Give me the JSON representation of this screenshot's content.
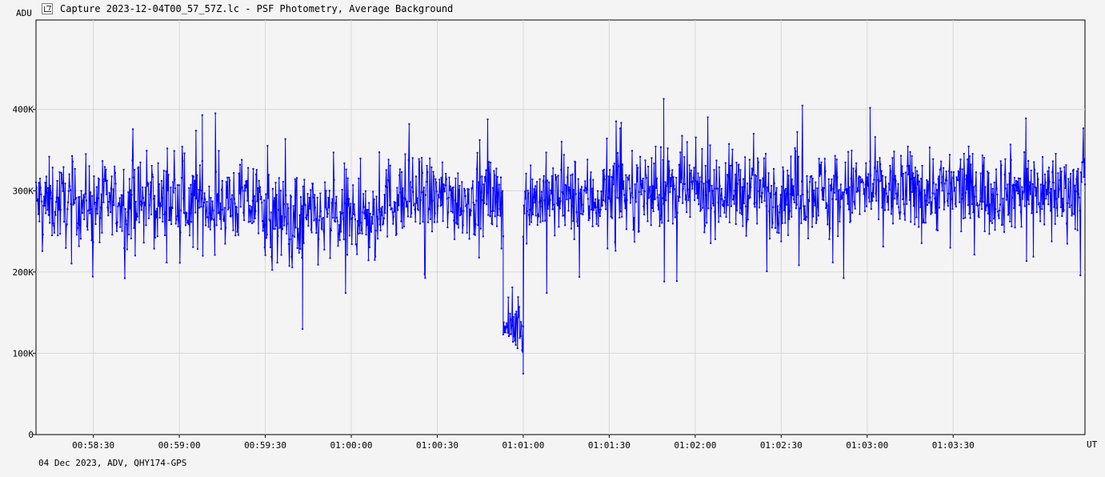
{
  "window": {
    "title": "Capture 2023-12-04T00_57_57Z.lc - PSF Photometry, Average Background",
    "footer": "04 Dec 2023, ADV, QHY174-GPS"
  },
  "colors": {
    "series": "#0000ff",
    "background": "#f4f4f4",
    "grid": "#d8d8d8"
  },
  "icons": {
    "title": "chart-icon"
  },
  "chart_data": {
    "type": "line",
    "title": "",
    "xlabel": "UT",
    "ylabel": "ADU",
    "x_range": [
      "00:58:10",
      "00:59:55",
      "01:03:57"
    ],
    "x_axis_start": "00:58:10",
    "x_axis_end": "01:04:16",
    "x_ticks": [
      "00:58:30",
      "00:59:00",
      "00:59:30",
      "01:00:00",
      "01:00:30",
      "01:01:00",
      "01:01:30",
      "01:02:00",
      "01:02:30",
      "01:03:00",
      "01:03:30"
    ],
    "ylim": [
      0,
      400000
    ],
    "y_ticks": [
      "0",
      "100K",
      "200K",
      "300K",
      "400K"
    ],
    "y_tick_values": [
      0,
      100000,
      200000,
      300000,
      400000
    ],
    "grid": true,
    "series": [
      {
        "name": "",
        "segments": [
          {
            "from": "00:58:10",
            "to": "00:59:30",
            "mean": 285000,
            "spread": 45000
          },
          {
            "from": "00:59:30",
            "to": "01:00:10",
            "mean": 265000,
            "spread": 50000
          },
          {
            "from": "01:00:10",
            "to": "01:00:53",
            "mean": 290000,
            "spread": 45000
          },
          {
            "from": "01:00:53",
            "to": "01:01:00",
            "mean": 130000,
            "spread": 25000
          },
          {
            "from": "01:01:00",
            "to": "01:01:30",
            "mean": 290000,
            "spread": 45000
          },
          {
            "from": "01:01:30",
            "to": "01:04:16",
            "mean": 300000,
            "spread": 45000
          }
        ],
        "notable_points": [
          {
            "x": "00:59:43",
            "y": 130000
          },
          {
            "x": "01:01:00",
            "y": 75000
          },
          {
            "x": "01:01:49",
            "y": 413000
          },
          {
            "x": "00:59:08",
            "y": 393000
          },
          {
            "x": "01:03:01",
            "y": 402000
          }
        ]
      }
    ]
  }
}
